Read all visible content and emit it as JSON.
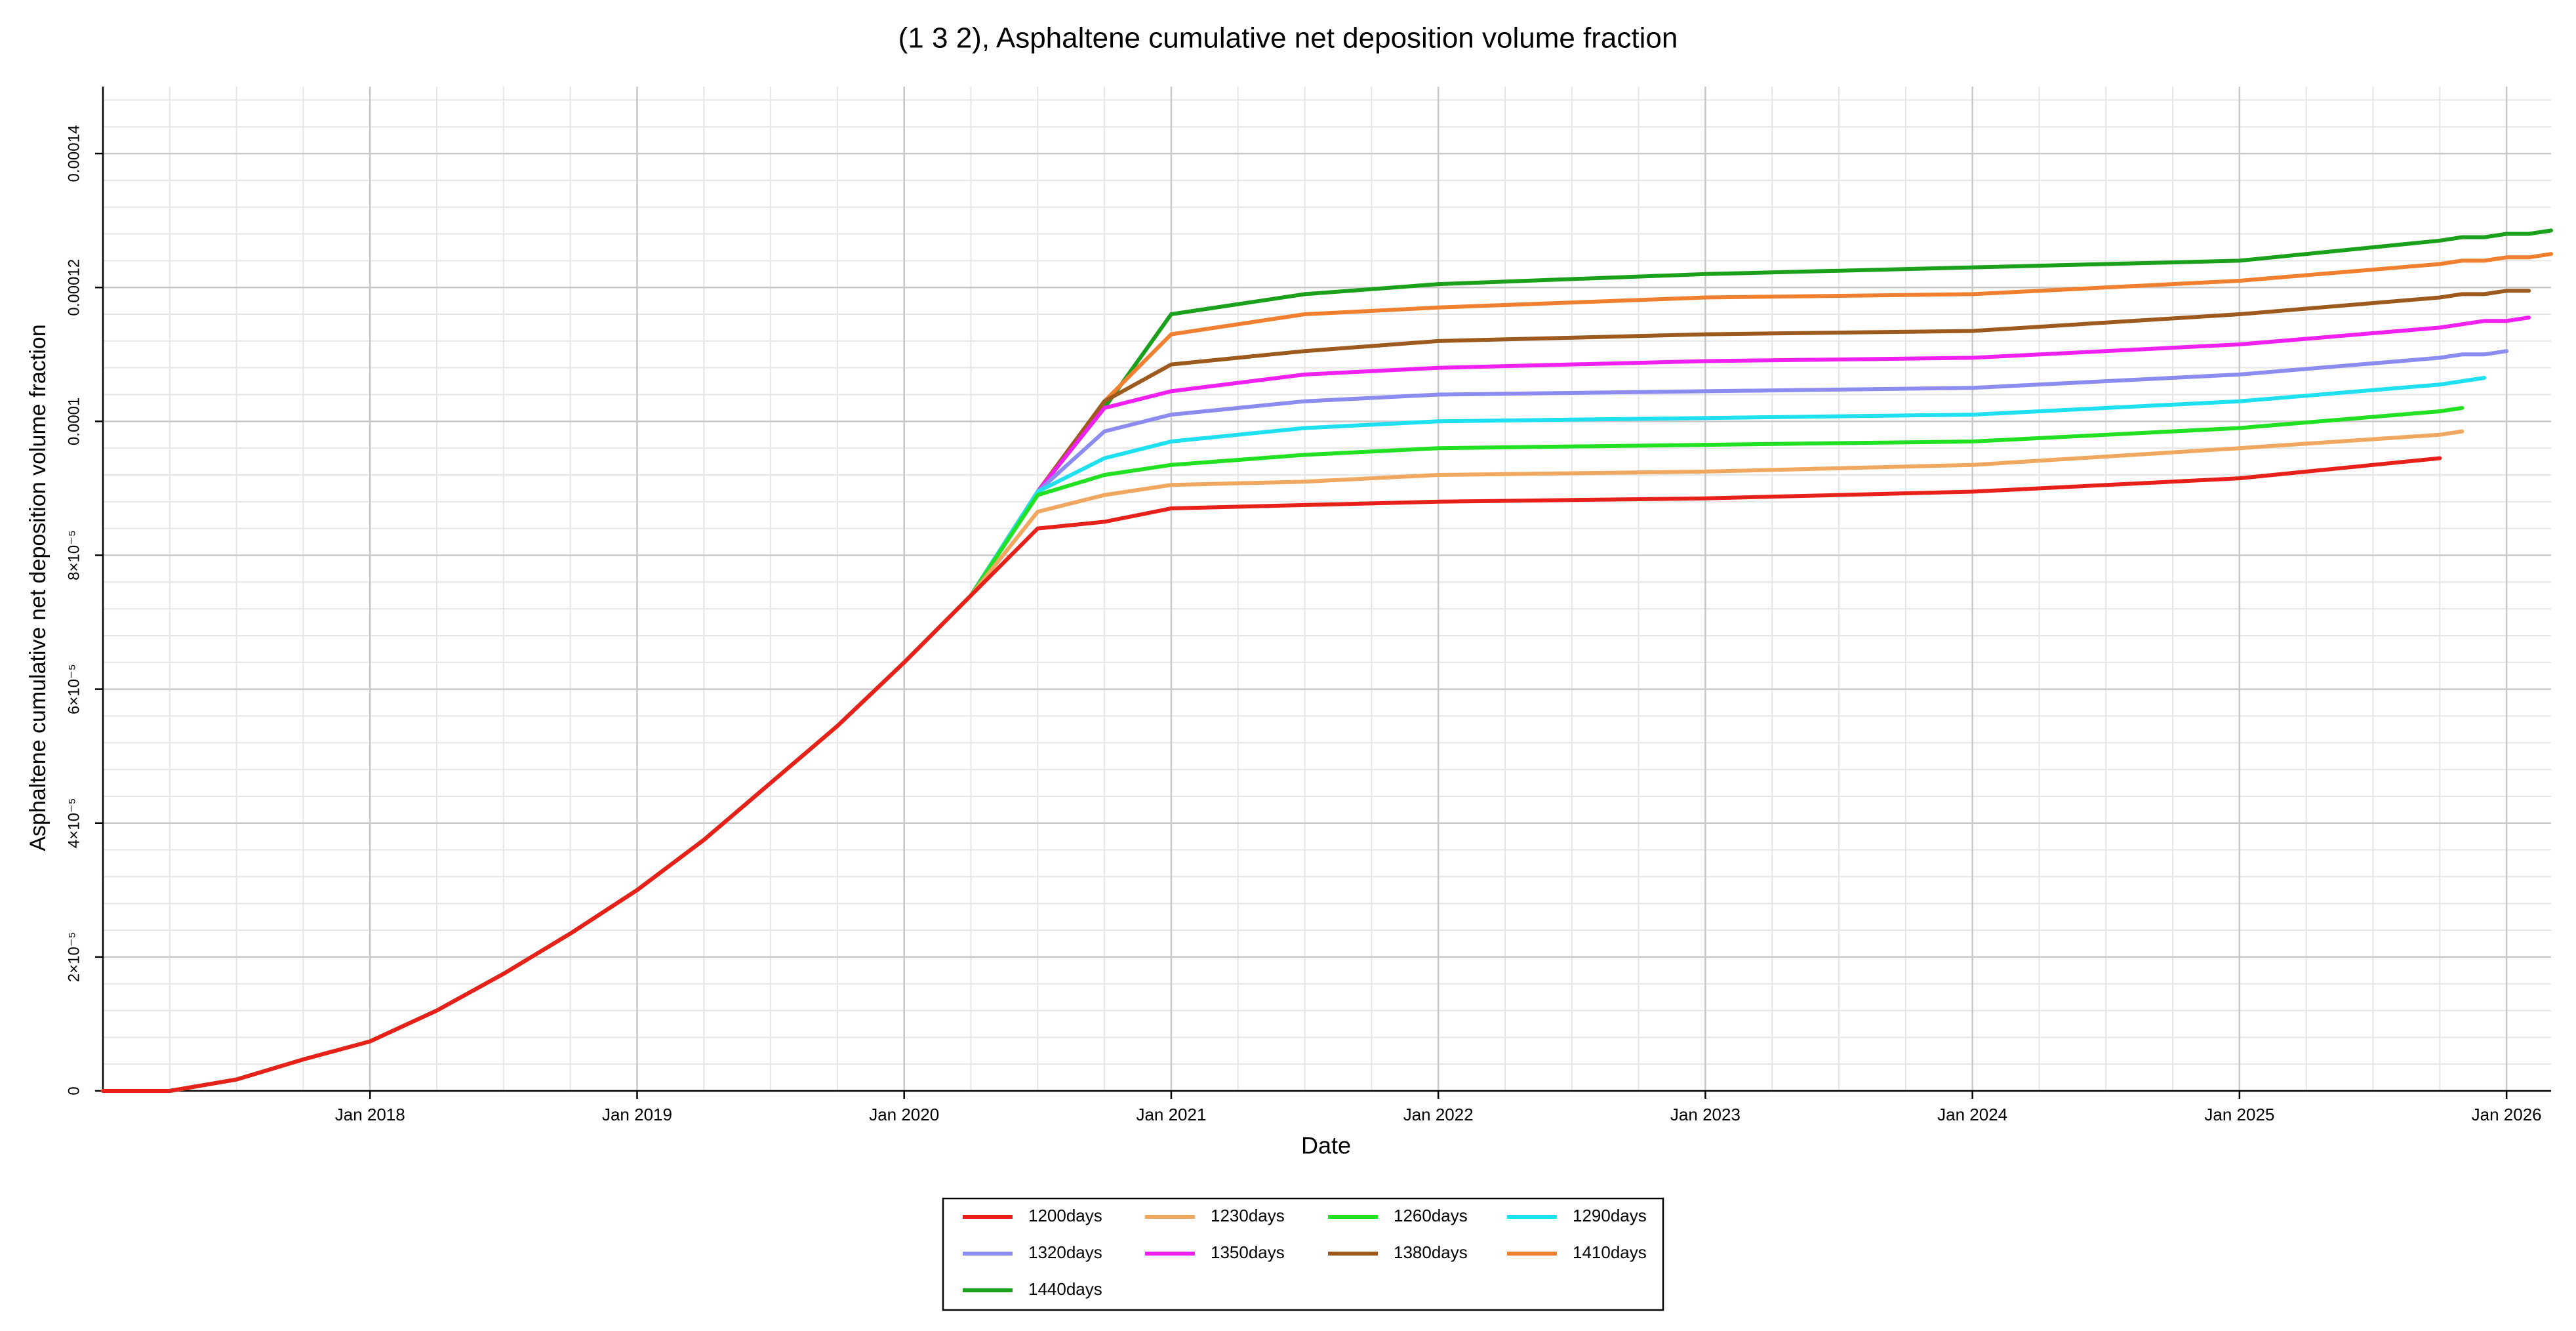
{
  "chart_data": {
    "type": "line",
    "title": "(1 3 2), Asphaltene cumulative net deposition volume fraction",
    "x_label": "Date",
    "y_label": "Asphaltene cumulative net deposition volume fraction",
    "x": [
      "2017-01",
      "2017-04",
      "2017-07",
      "2017-10",
      "2018-01",
      "2018-04",
      "2018-07",
      "2018-10",
      "2019-01",
      "2019-04",
      "2019-07",
      "2019-10",
      "2020-01",
      "2020-04",
      "2020-07",
      "2020-10",
      "2021-01",
      "2021-07",
      "2022-01",
      "2023-01",
      "2024-01",
      "2025-01",
      "2025-10",
      "2025-11",
      "2025-12",
      "2026-01",
      "2026-02",
      "2026-03"
    ],
    "xlim": [
      "2017-01",
      "2026-03"
    ],
    "xticks": [
      {
        "value": "2018-01",
        "label": "Jan 2018"
      },
      {
        "value": "2019-01",
        "label": "Jan 2019"
      },
      {
        "value": "2020-01",
        "label": "Jan 2020"
      },
      {
        "value": "2021-01",
        "label": "Jan 2021"
      },
      {
        "value": "2022-01",
        "label": "Jan 2022"
      },
      {
        "value": "2023-01",
        "label": "Jan 2023"
      },
      {
        "value": "2024-01",
        "label": "Jan 2024"
      },
      {
        "value": "2025-01",
        "label": "Jan 2025"
      },
      {
        "value": "2026-01",
        "label": "Jan 2026"
      }
    ],
    "ylim": [
      0,
      0.00015
    ],
    "yticks": [
      0,
      {
        "value": 2e-05,
        "label": "2×10⁻⁵"
      },
      {
        "value": 4e-05,
        "label": "4×10⁻⁵"
      },
      {
        "value": 6e-05,
        "label": "6×10⁻⁵"
      },
      {
        "value": 8e-05,
        "label": "8×10⁻⁵"
      },
      0.0001,
      0.00012,
      0.00014
    ],
    "grid": true,
    "legend": "bottom",
    "series": [
      {
        "name": "1200days",
        "color": "#e8201a",
        "values": [
          0,
          0,
          1.7e-06,
          4.7e-06,
          7.4e-06,
          1.2e-05,
          1.75e-05,
          2.35e-05,
          3e-05,
          3.75e-05,
          4.6e-05,
          5.45e-05,
          6.4e-05,
          7.4e-05,
          8.4e-05,
          8.5e-05,
          8.7e-05,
          8.75e-05,
          8.8e-05,
          8.85e-05,
          8.95e-05,
          9.15e-05,
          9.45e-05,
          null,
          null,
          null,
          null,
          null
        ]
      },
      {
        "name": "1230days",
        "color": "#f0a860",
        "values": [
          0,
          0,
          1.7e-06,
          4.7e-06,
          7.4e-06,
          1.2e-05,
          1.75e-05,
          2.35e-05,
          3e-05,
          3.75e-05,
          4.6e-05,
          5.45e-05,
          6.4e-05,
          7.4e-05,
          8.65e-05,
          8.9e-05,
          9.05e-05,
          9.1e-05,
          9.2e-05,
          9.25e-05,
          9.35e-05,
          9.6e-05,
          9.8e-05,
          9.85e-05,
          null,
          null,
          null,
          null
        ]
      },
      {
        "name": "1260days",
        "color": "#22e022",
        "values": [
          0,
          0,
          1.7e-06,
          4.7e-06,
          7.4e-06,
          1.2e-05,
          1.75e-05,
          2.35e-05,
          3e-05,
          3.75e-05,
          4.6e-05,
          5.45e-05,
          6.4e-05,
          7.4e-05,
          8.9e-05,
          9.2e-05,
          9.35e-05,
          9.5e-05,
          9.6e-05,
          9.65e-05,
          9.7e-05,
          9.9e-05,
          0.0001015,
          0.000102,
          null,
          null,
          null,
          null
        ]
      },
      {
        "name": "1290days",
        "color": "#1ee0f0",
        "values": [
          0,
          0,
          1.7e-06,
          4.7e-06,
          7.4e-06,
          1.2e-05,
          1.75e-05,
          2.35e-05,
          3e-05,
          3.75e-05,
          4.6e-05,
          5.45e-05,
          6.4e-05,
          7.4e-05,
          8.95e-05,
          9.45e-05,
          9.7e-05,
          9.9e-05,
          0.0001,
          0.0001005,
          0.000101,
          0.000103,
          0.0001055,
          0.000106,
          0.0001065,
          null,
          null,
          null
        ]
      },
      {
        "name": "1320days",
        "color": "#8c8cf0",
        "values": [
          0,
          0,
          1.7e-06,
          4.7e-06,
          7.4e-06,
          1.2e-05,
          1.75e-05,
          2.35e-05,
          3e-05,
          3.75e-05,
          4.6e-05,
          5.45e-05,
          6.4e-05,
          7.4e-05,
          8.95e-05,
          9.85e-05,
          0.000101,
          0.000103,
          0.000104,
          0.0001045,
          0.000105,
          0.000107,
          0.0001095,
          0.00011,
          0.00011,
          0.0001105,
          null,
          null
        ]
      },
      {
        "name": "1350days",
        "color": "#f020f0",
        "values": [
          0,
          0,
          1.7e-06,
          4.7e-06,
          7.4e-06,
          1.2e-05,
          1.75e-05,
          2.35e-05,
          3e-05,
          3.75e-05,
          4.6e-05,
          5.45e-05,
          6.4e-05,
          7.4e-05,
          8.95e-05,
          0.000102,
          0.0001045,
          0.000107,
          0.000108,
          0.000109,
          0.0001095,
          0.0001115,
          0.000114,
          0.0001145,
          0.000115,
          0.000115,
          0.0001155,
          null
        ]
      },
      {
        "name": "1380days",
        "color": "#9c5a1e",
        "values": [
          0,
          0,
          1.7e-06,
          4.7e-06,
          7.4e-06,
          1.2e-05,
          1.75e-05,
          2.35e-05,
          3e-05,
          3.75e-05,
          4.6e-05,
          5.45e-05,
          6.4e-05,
          7.4e-05,
          8.95e-05,
          0.000103,
          0.0001085,
          0.0001105,
          0.000112,
          0.000113,
          0.0001135,
          0.000116,
          0.0001185,
          0.000119,
          0.000119,
          0.0001195,
          0.0001195,
          null
        ]
      },
      {
        "name": "1410days",
        "color": "#f08030",
        "values": [
          0,
          0,
          1.7e-06,
          4.7e-06,
          7.4e-06,
          1.2e-05,
          1.75e-05,
          2.35e-05,
          3e-05,
          3.75e-05,
          4.6e-05,
          5.45e-05,
          6.4e-05,
          7.4e-05,
          8.95e-05,
          0.000103,
          0.000113,
          0.000116,
          0.000117,
          0.0001185,
          0.000119,
          0.000121,
          0.0001235,
          0.000124,
          0.000124,
          0.0001245,
          0.0001245,
          0.000125
        ]
      },
      {
        "name": "1440days",
        "color": "#1aa01a",
        "values": [
          0,
          0,
          1.7e-06,
          4.7e-06,
          7.4e-06,
          1.2e-05,
          1.75e-05,
          2.35e-05,
          3e-05,
          3.75e-05,
          4.6e-05,
          5.45e-05,
          6.4e-05,
          7.4e-05,
          8.95e-05,
          0.000102,
          0.000116,
          0.000119,
          0.0001205,
          0.000122,
          0.000123,
          0.000124,
          0.000127,
          0.0001275,
          0.0001275,
          0.000128,
          0.000128,
          0.0001285
        ]
      }
    ]
  }
}
